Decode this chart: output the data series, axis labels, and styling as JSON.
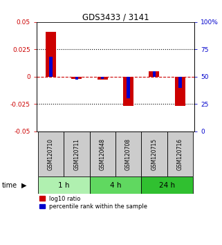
{
  "title": "GDS3433 / 3141",
  "samples": [
    "GSM120710",
    "GSM120711",
    "GSM120648",
    "GSM120708",
    "GSM120715",
    "GSM120716"
  ],
  "log10_ratio": [
    0.041,
    -0.002,
    -0.003,
    -0.027,
    0.005,
    -0.027
  ],
  "percentile_rank": [
    68,
    47,
    48,
    30,
    55,
    40
  ],
  "groups": [
    {
      "label": "1 h",
      "indices": [
        0,
        1
      ],
      "color": "#b0f0b0"
    },
    {
      "label": "4 h",
      "indices": [
        2,
        3
      ],
      "color": "#60d860"
    },
    {
      "label": "24 h",
      "indices": [
        4,
        5
      ],
      "color": "#30c030"
    }
  ],
  "ylim_left": [
    -0.05,
    0.05
  ],
  "ylim_right": [
    0,
    100
  ],
  "yticks_left": [
    -0.05,
    -0.025,
    0,
    0.025,
    0.05
  ],
  "yticks_right": [
    0,
    25,
    50,
    75,
    100
  ],
  "red_bar_width": 0.4,
  "blue_bar_width": 0.12,
  "red_color": "#cc0000",
  "blue_color": "#0000cc",
  "legend_red": "log10 ratio",
  "legend_blue": "percentile rank within the sample",
  "time_label": "time",
  "background_color": "#ffffff",
  "sample_label_bg": "#cccccc",
  "dotted_color": "#000000",
  "zero_line_color": "#cc0000"
}
